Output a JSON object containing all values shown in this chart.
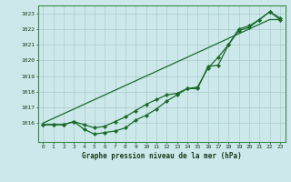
{
  "title": "Graphe pression niveau de la mer (hPa)",
  "bg_color": "#cce8ea",
  "grid_color": "#aacccc",
  "line_color": "#1a6b2a",
  "x_labels": [
    "0",
    "1",
    "2",
    "3",
    "4",
    "5",
    "6",
    "7",
    "8",
    "9",
    "10",
    "11",
    "12",
    "13",
    "14",
    "15",
    "16",
    "17",
    "18",
    "19",
    "20",
    "21",
    "22",
    "23"
  ],
  "ylim": [
    1014.8,
    1023.5
  ],
  "yticks": [
    1016,
    1017,
    1018,
    1019,
    1020,
    1021,
    1022,
    1023
  ],
  "line_straight": [
    1016.0,
    1016.3,
    1016.6,
    1016.9,
    1017.2,
    1017.5,
    1017.8,
    1018.1,
    1018.4,
    1018.7,
    1019.0,
    1019.3,
    1019.6,
    1019.9,
    1020.2,
    1020.5,
    1020.8,
    1021.1,
    1021.4,
    1021.7,
    1022.0,
    1022.3,
    1022.6,
    1022.6
  ],
  "line_mid": [
    1015.9,
    1015.9,
    1015.9,
    1016.1,
    1015.9,
    1015.7,
    1015.8,
    1016.1,
    1016.4,
    1016.8,
    1017.2,
    1017.5,
    1017.8,
    1017.9,
    1018.2,
    1018.2,
    1019.6,
    1019.7,
    1021.0,
    1021.9,
    1022.1,
    1022.6,
    1023.1,
    1022.6
  ],
  "line_low": [
    1015.9,
    1015.9,
    1015.9,
    1016.1,
    1015.6,
    1015.3,
    1015.4,
    1015.5,
    1015.7,
    1016.2,
    1016.5,
    1016.9,
    1017.4,
    1017.8,
    1018.2,
    1018.3,
    1019.5,
    1020.2,
    1021.0,
    1022.0,
    1022.2,
    1022.6,
    1023.1,
    1022.7
  ]
}
